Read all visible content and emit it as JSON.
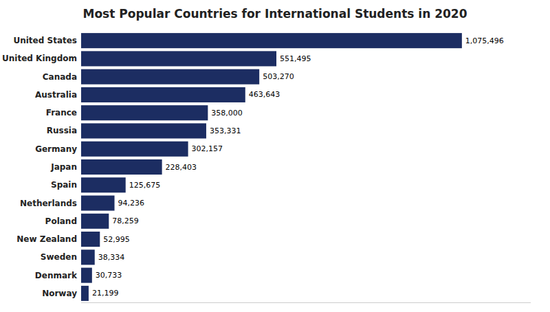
{
  "chart_data": {
    "type": "bar",
    "orientation": "horizontal",
    "title": "Most Popular Countries for International Students in 2020",
    "categories": [
      "United States",
      "United Kingdom",
      "Canada",
      "Australia",
      "France",
      "Russia",
      "Germany",
      "Japan",
      "Spain",
      "Netherlands",
      "Poland",
      "New Zealand",
      "Sweden",
      "Denmark",
      "Norway"
    ],
    "values": [
      1075496,
      551495,
      503270,
      463643,
      358000,
      353331,
      302157,
      228403,
      125675,
      94236,
      78259,
      52995,
      38334,
      30733,
      21199
    ],
    "value_labels": [
      "1,075,496",
      "551,495",
      "503,270",
      "463,643",
      "358,000",
      "353,331",
      "302,157",
      "228,403",
      "125,675",
      "94,236",
      "78,259",
      "52,995",
      "38,334",
      "30,733",
      "21,199"
    ],
    "data_labels": true,
    "color": "#1c2d62",
    "xlim": [
      0,
      1270000
    ],
    "tick_labels": "y",
    "grid": false
  }
}
